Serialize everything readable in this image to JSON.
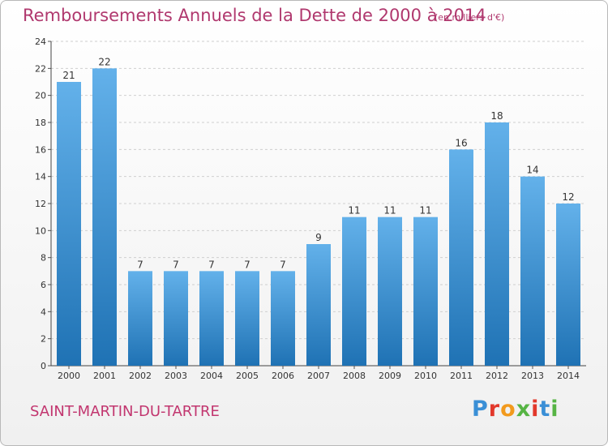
{
  "title": "Remboursements Annuels de la Dette de 2000 à 2014",
  "subtitle": "(en milliers d'€)",
  "place": "SAINT-MARTIN-DU-TARTRE",
  "logo": "Proxiti",
  "colors": {
    "title": "#b0386e",
    "bar_top": "#63b1ea",
    "bar_bottom": "#1f72b4",
    "logo_letters": [
      "#3a8fd6",
      "#e2382b",
      "#f29a1d",
      "#56b444",
      "#e2382b",
      "#3a8fd6",
      "#56b444"
    ]
  },
  "chart_data": {
    "type": "bar",
    "categories": [
      "2000",
      "2001",
      "2002",
      "2003",
      "2004",
      "2005",
      "2006",
      "2007",
      "2008",
      "2009",
      "2010",
      "2011",
      "2012",
      "2013",
      "2014"
    ],
    "values": [
      21,
      22,
      7,
      7,
      7,
      7,
      7,
      9,
      11,
      11,
      11,
      16,
      18,
      14,
      12
    ],
    "data_labels": [
      "21",
      "22",
      "7",
      "7",
      "7",
      "7",
      "7",
      "9",
      "11",
      "11",
      "11",
      "16",
      "18",
      "14",
      "12"
    ],
    "yticks": [
      "0",
      "2",
      "4",
      "6",
      "8",
      "10",
      "12",
      "14",
      "16",
      "18",
      "20",
      "22",
      "24"
    ],
    "ylim": [
      0,
      24
    ],
    "grid": "horizontal dashed",
    "xlabel": "",
    "ylabel": ""
  }
}
